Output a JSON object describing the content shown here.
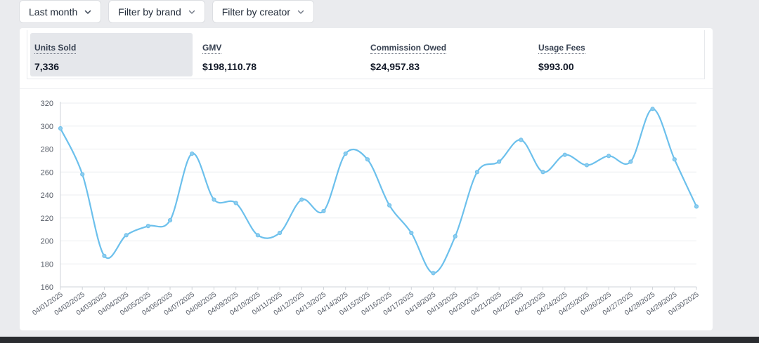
{
  "filters": [
    {
      "label": "Last month",
      "icon": "chevron-down-icon"
    },
    {
      "label": "Filter by brand",
      "icon": "chevron-down-icon"
    },
    {
      "label": "Filter by creator",
      "icon": "chevron-down-icon"
    }
  ],
  "stats": [
    {
      "label": "Units Sold",
      "value": "7,336",
      "active": true
    },
    {
      "label": "GMV",
      "value": "$198,110.78",
      "active": false
    },
    {
      "label": "Commission Owed",
      "value": "$24,957.83",
      "active": false
    },
    {
      "label": "Usage Fees",
      "value": "$993.00",
      "active": false
    }
  ],
  "colors": {
    "line": "#6cc0ec",
    "marker": "#8fcdee",
    "grid": "#ebedf0",
    "axis": "#6b7280"
  },
  "chart_data": {
    "type": "line",
    "title": "",
    "xlabel": "",
    "ylabel": "",
    "ylim": [
      160,
      320
    ],
    "yticks": [
      160,
      180,
      200,
      220,
      240,
      260,
      280,
      300,
      320
    ],
    "categories": [
      "04/01/2025",
      "04/02/2025",
      "04/03/2025",
      "04/04/2025",
      "04/05/2025",
      "04/06/2025",
      "04/07/2025",
      "04/08/2025",
      "04/09/2025",
      "04/10/2025",
      "04/11/2025",
      "04/12/2025",
      "04/13/2025",
      "04/14/2025",
      "04/15/2025",
      "04/16/2025",
      "04/17/2025",
      "04/18/2025",
      "04/19/2025",
      "04/20/2025",
      "04/21/2025",
      "04/22/2025",
      "04/23/2025",
      "04/24/2025",
      "04/25/2025",
      "04/26/2025",
      "04/27/2025",
      "04/28/2025",
      "04/29/2025",
      "04/30/2025"
    ],
    "series": [
      {
        "name": "Units Sold",
        "values": [
          298,
          258,
          187,
          205,
          213,
          218,
          276,
          236,
          233,
          205,
          207,
          236,
          226,
          276,
          271,
          231,
          207,
          172,
          204,
          260,
          269,
          288,
          260,
          275,
          266,
          274,
          269,
          315,
          271,
          230
        ]
      }
    ]
  }
}
